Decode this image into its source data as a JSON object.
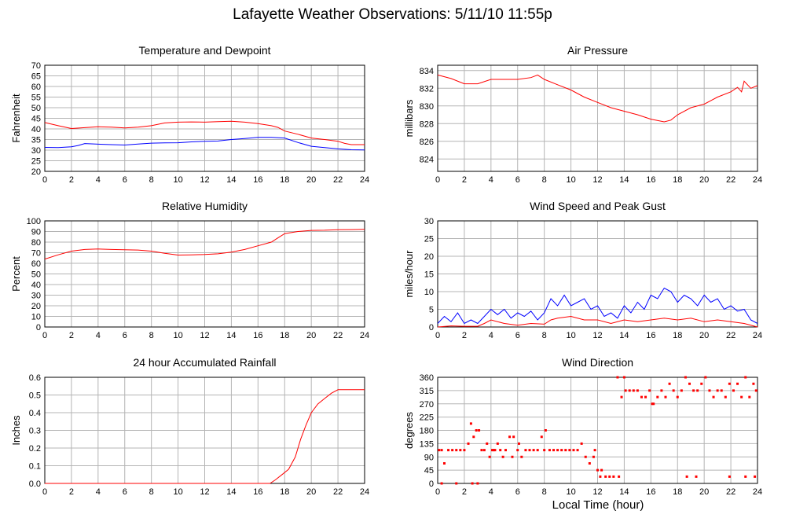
{
  "page": {
    "title": "Lafayette Weather Observations: 5/11/10 11:55p",
    "xlabel": "Local Time (hour)"
  },
  "colors": {
    "red": "#ff0000",
    "blue": "#0000ff",
    "grid": "#b4b4b4",
    "axis": "#000000"
  },
  "chart_data": [
    {
      "id": "temp",
      "type": "line",
      "title": "Temperature and Dewpoint",
      "ylabel": "Fahrenheit",
      "xlim": [
        0,
        24
      ],
      "ylim": [
        20,
        70
      ],
      "xticks": [
        0,
        2,
        4,
        6,
        8,
        10,
        12,
        14,
        16,
        18,
        20,
        22,
        24
      ],
      "yticks": [
        20,
        25,
        30,
        35,
        40,
        45,
        50,
        55,
        60,
        65,
        70
      ],
      "grid": true,
      "series": [
        {
          "color": "red",
          "x": [
            0,
            1,
            2,
            3,
            4,
            5,
            6,
            7,
            8,
            9,
            10,
            11,
            12,
            13,
            14,
            15,
            16,
            17,
            17.5,
            18,
            19,
            20,
            21,
            22,
            22.5,
            23,
            24
          ],
          "y": [
            43,
            41.5,
            40.2,
            40.6,
            41,
            40.8,
            40.5,
            40.8,
            41.5,
            42.8,
            43.2,
            43.3,
            43.2,
            43.4,
            43.6,
            43.2,
            42.5,
            41.5,
            40.7,
            39,
            37.5,
            35.7,
            35,
            34.2,
            33.2,
            32.6,
            32.6
          ]
        },
        {
          "color": "blue",
          "x": [
            0,
            1,
            2,
            2.5,
            3,
            4,
            5,
            6,
            7,
            8,
            9,
            10,
            11,
            12,
            13,
            14,
            15,
            16,
            17,
            18,
            19,
            20,
            21,
            22,
            23,
            24
          ],
          "y": [
            31.3,
            31.2,
            31.6,
            32.2,
            33.1,
            32.8,
            32.6,
            32.4,
            32.9,
            33.3,
            33.4,
            33.5,
            33.9,
            34.2,
            34.3,
            35,
            35.5,
            36,
            36,
            35.7,
            33.6,
            31.8,
            31.2,
            30.6,
            30.2,
            30.1
          ]
        }
      ]
    },
    {
      "id": "pressure",
      "type": "line",
      "title": "Air Pressure",
      "ylabel": "millibars",
      "xlim": [
        0,
        24
      ],
      "ylim": [
        822.6,
        834.6
      ],
      "xticks": [
        0,
        2,
        4,
        6,
        8,
        10,
        12,
        14,
        16,
        18,
        20,
        22,
        24
      ],
      "yticks": [
        824,
        826,
        828,
        830,
        832,
        834
      ],
      "grid": true,
      "series": [
        {
          "color": "red",
          "x": [
            0,
            1,
            2,
            3,
            4,
            5,
            6,
            7,
            7.5,
            8,
            9,
            10,
            11,
            12,
            13,
            14,
            15,
            16,
            17,
            17.5,
            18,
            19,
            20,
            21,
            22,
            22.5,
            22.8,
            23,
            23.5,
            24
          ],
          "y": [
            833.5,
            833.1,
            832.5,
            832.5,
            833,
            833,
            833,
            833.2,
            833.5,
            833,
            832.4,
            831.8,
            831,
            830.4,
            829.8,
            829.4,
            829,
            828.5,
            828.2,
            828.4,
            829,
            829.8,
            830.2,
            831,
            831.6,
            832.1,
            831.6,
            832.8,
            832,
            832.3
          ]
        }
      ]
    },
    {
      "id": "humidity",
      "type": "line",
      "title": "Relative Humidity",
      "ylabel": "Percent",
      "xlim": [
        0,
        24
      ],
      "ylim": [
        0,
        100
      ],
      "xticks": [
        0,
        2,
        4,
        6,
        8,
        10,
        12,
        14,
        16,
        18,
        20,
        22,
        24
      ],
      "yticks": [
        0,
        10,
        20,
        30,
        40,
        50,
        60,
        70,
        80,
        90,
        100
      ],
      "grid": true,
      "series": [
        {
          "color": "red",
          "x": [
            0,
            1,
            2,
            3,
            4,
            5,
            6,
            7,
            8,
            9,
            10,
            11,
            12,
            13,
            14,
            15,
            16,
            17,
            17.5,
            18,
            19,
            20,
            21,
            22,
            23,
            24
          ],
          "y": [
            64,
            68,
            71.5,
            73,
            73.5,
            73,
            72.8,
            72.5,
            71.5,
            69.5,
            67.8,
            68,
            68.3,
            69,
            70.5,
            73,
            76.5,
            80,
            84,
            88,
            90,
            91,
            91.2,
            91.6,
            91.8,
            92
          ]
        }
      ]
    },
    {
      "id": "wind",
      "type": "line",
      "title": "Wind Speed and Peak Gust",
      "ylabel": "miles/hour",
      "xlim": [
        0,
        24
      ],
      "ylim": [
        0,
        30
      ],
      "xticks": [
        0,
        2,
        4,
        6,
        8,
        10,
        12,
        14,
        16,
        18,
        20,
        22,
        24
      ],
      "yticks": [
        0,
        5,
        10,
        15,
        20,
        25,
        30
      ],
      "grid": true,
      "series": [
        {
          "color": "blue",
          "x": [
            0,
            0.5,
            1,
            1.5,
            2,
            2.5,
            3,
            3.5,
            4,
            4.5,
            5,
            5.5,
            6,
            6.5,
            7,
            7.5,
            8,
            8.5,
            9,
            9.5,
            10,
            10.5,
            11,
            11.5,
            12,
            12.5,
            13,
            13.5,
            14,
            14.5,
            15,
            15.5,
            16,
            16.5,
            17,
            17.5,
            18,
            18.5,
            19,
            19.5,
            20,
            20.5,
            21,
            21.5,
            22,
            22.5,
            23,
            23.5,
            24
          ],
          "y": [
            1,
            3,
            1.5,
            4,
            1,
            2,
            1,
            3,
            5,
            3.5,
            5,
            2.5,
            4,
            3,
            4.5,
            2,
            4,
            8,
            6,
            9,
            6,
            7,
            8,
            5,
            6,
            3,
            4,
            2.5,
            6,
            4,
            7,
            5,
            9,
            8,
            11,
            10,
            7,
            9,
            8,
            6,
            9,
            7,
            8,
            5,
            6,
            4.5,
            5,
            2,
            1
          ]
        },
        {
          "color": "red",
          "x": [
            0,
            1,
            2,
            3,
            3.5,
            4,
            5,
            6,
            7,
            8,
            8.5,
            9,
            10,
            11,
            12,
            13,
            14,
            15,
            16,
            17,
            18,
            19,
            20,
            21,
            22,
            23,
            24
          ],
          "y": [
            0,
            0.3,
            0.2,
            0.2,
            1,
            2,
            1,
            0.5,
            1,
            0.8,
            2,
            2.5,
            3,
            2,
            2,
            1,
            2,
            1.5,
            2,
            2.5,
            2,
            2.5,
            1.5,
            2,
            1.5,
            1,
            0
          ]
        }
      ]
    },
    {
      "id": "rain",
      "type": "line",
      "title": "24 hour Accumulated Rainfall",
      "ylabel": "Inches",
      "xlim": [
        0,
        24
      ],
      "ylim": [
        0,
        0.6
      ],
      "xticks": [
        0,
        2,
        4,
        6,
        8,
        10,
        12,
        14,
        16,
        18,
        20,
        22,
        24
      ],
      "yticks": [
        0,
        0.1,
        0.2,
        0.3,
        0.4,
        0.5,
        0.6
      ],
      "yticklabels": [
        "0.0",
        "0.1",
        "0.2",
        "0.3",
        "0.4",
        "0.5",
        "0.6"
      ],
      "grid": true,
      "series": [
        {
          "color": "red",
          "x": [
            0,
            16.9,
            17.3,
            17.8,
            18.3,
            18.8,
            19.2,
            19.6,
            20,
            20.5,
            21,
            21.5,
            22,
            22.5,
            24
          ],
          "y": [
            0,
            0,
            0.02,
            0.05,
            0.08,
            0.15,
            0.25,
            0.33,
            0.4,
            0.45,
            0.48,
            0.51,
            0.53,
            0.53,
            0.53
          ]
        }
      ]
    },
    {
      "id": "direction",
      "type": "scatter",
      "title": "Wind Direction",
      "ylabel": "degrees",
      "xlim": [
        0,
        24
      ],
      "ylim": [
        0,
        360
      ],
      "xticks": [
        0,
        2,
        4,
        6,
        8,
        10,
        12,
        14,
        16,
        18,
        20,
        22,
        24
      ],
      "yticks": [
        0,
        45,
        90,
        135,
        180,
        225,
        270,
        315,
        360
      ],
      "grid": true,
      "series": [
        {
          "color": "red",
          "x": [
            0.1,
            0.3,
            0.5,
            0.8,
            1.1,
            1.4,
            1.7,
            2.0,
            2.3,
            2.5,
            2.7,
            2.9,
            3.1,
            3.3,
            3.5,
            3.7,
            3.9,
            4.1,
            4.3,
            4.5,
            4.7,
            4.9,
            5.1,
            5.4,
            5.7,
            6.0,
            6.3,
            6.6,
            6.9,
            7.2,
            7.5,
            7.8,
            8.1,
            8.4,
            8.7,
            9.0,
            9.3,
            9.6,
            9.9,
            10.2,
            10.5,
            10.8,
            11.1,
            11.4,
            11.7,
            12.0,
            12.3,
            12.6,
            12.9,
            13.2,
            13.5,
            13.8,
            14.1,
            14.4,
            14.7,
            15.0,
            15.3,
            15.6,
            15.9,
            16.2,
            16.5,
            16.8,
            17.1,
            17.4,
            17.7,
            18.0,
            18.3,
            18.6,
            18.9,
            19.2,
            19.5,
            19.8,
            20.1,
            20.4,
            20.7,
            21.0,
            21.3,
            21.6,
            21.9,
            22.2,
            22.5,
            22.8,
            23.1,
            23.4,
            23.7,
            23.9,
            1.4,
            2.6,
            3.0,
            0.3,
            4.2,
            5.6,
            6.1,
            8.0,
            11.8,
            12.2,
            13.6,
            18.7,
            19.4,
            21.9,
            23.1,
            23.8,
            16.1,
            14.0
          ],
          "y": [
            113,
            113,
            68,
            113,
            113,
            113,
            113,
            113,
            135,
            203,
            158,
            180,
            180,
            113,
            113,
            135,
            90,
            113,
            113,
            135,
            113,
            90,
            113,
            158,
            158,
            113,
            90,
            113,
            113,
            113,
            113,
            158,
            180,
            113,
            113,
            113,
            113,
            113,
            113,
            113,
            113,
            135,
            90,
            68,
            90,
            45,
            45,
            23,
            23,
            23,
            360,
            293,
            315,
            315,
            315,
            315,
            293,
            293,
            315,
            270,
            293,
            315,
            293,
            338,
            315,
            293,
            315,
            360,
            338,
            315,
            315,
            338,
            360,
            315,
            293,
            315,
            315,
            293,
            338,
            315,
            338,
            293,
            360,
            293,
            338,
            315,
            0,
            0,
            0,
            0,
            113,
            90,
            135,
            113,
            113,
            23,
            23,
            23,
            23,
            23,
            23,
            23,
            270,
            360
          ]
        }
      ]
    }
  ]
}
